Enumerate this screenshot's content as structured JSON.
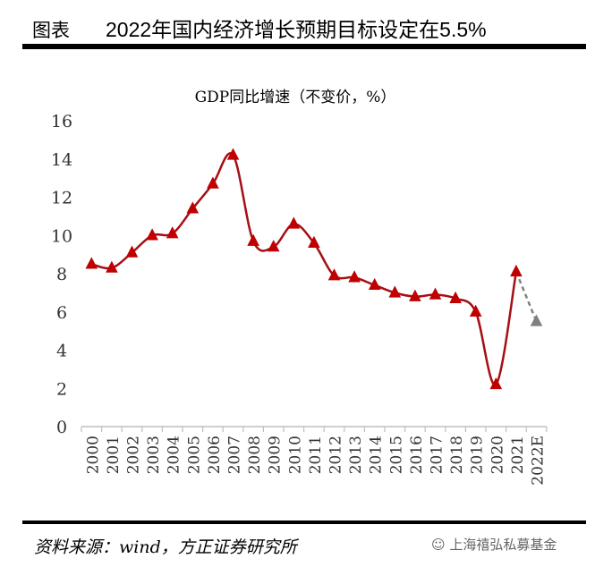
{
  "header": {
    "label": "图表",
    "title": "2022年国内经济增长预期目标设定在5.5%"
  },
  "footer": {
    "source": "资料来源：wind，方正证券研究所",
    "watermark": "上海禧弘私募基金"
  },
  "chart_data": {
    "type": "line",
    "title": "GDP同比增速（不变价，%）",
    "categories": [
      "2000",
      "2001",
      "2002",
      "2003",
      "2004",
      "2005",
      "2006",
      "2007",
      "2008",
      "2009",
      "2010",
      "2011",
      "2012",
      "2013",
      "2014",
      "2015",
      "2016",
      "2017",
      "2018",
      "2019",
      "2020",
      "2021",
      "2022E"
    ],
    "values": [
      8.5,
      8.3,
      9.1,
      10.0,
      10.1,
      11.4,
      12.7,
      14.2,
      9.7,
      9.4,
      10.6,
      9.6,
      7.9,
      7.8,
      7.4,
      7.0,
      6.8,
      6.9,
      6.7,
      6.0,
      2.2,
      8.1,
      5.5
    ],
    "forecast_from_index": 21,
    "ylim": [
      0,
      16
    ],
    "yticks": [
      0,
      2,
      4,
      6,
      8,
      10,
      12,
      14,
      16
    ],
    "grid": false,
    "legend": "none",
    "marker": "triangle",
    "colors": {
      "line": "#A50F15",
      "marker": "#C00000",
      "forecast": "#808080"
    }
  }
}
